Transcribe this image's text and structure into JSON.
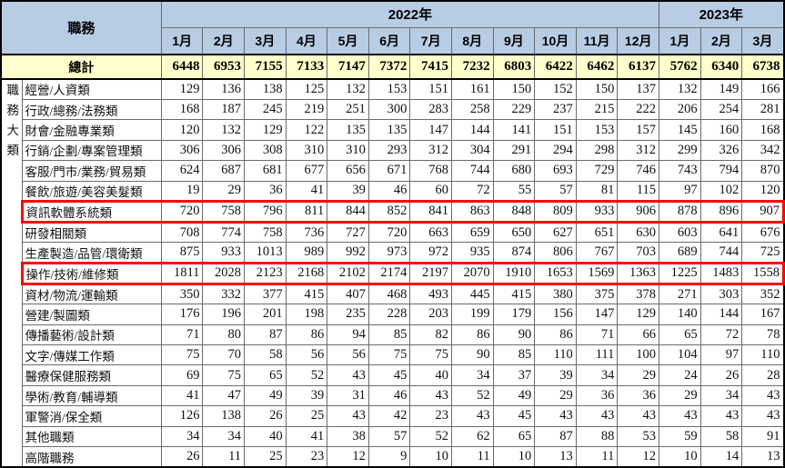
{
  "header": {
    "corner_label": "職務",
    "year_groups": [
      {
        "label": "2022年",
        "span": 12
      },
      {
        "label": "2023年",
        "span": 3
      }
    ],
    "months": [
      "1月",
      "2月",
      "3月",
      "4月",
      "5月",
      "6月",
      "7月",
      "8月",
      "9月",
      "10月",
      "11月",
      "12月",
      "1月",
      "2月",
      "3月"
    ]
  },
  "side_label": "職務大類",
  "total": {
    "label": "總計",
    "values": [
      6448,
      6953,
      7155,
      7133,
      7147,
      7372,
      7415,
      7232,
      6803,
      6422,
      6462,
      6137,
      5762,
      6340,
      6738
    ]
  },
  "rows": [
    {
      "category": "經營/人資類",
      "highlighted": false,
      "values": [
        129,
        136,
        138,
        125,
        132,
        153,
        151,
        161,
        150,
        152,
        150,
        137,
        132,
        149,
        166
      ]
    },
    {
      "category": "行政/總務/法務類",
      "highlighted": false,
      "values": [
        168,
        187,
        245,
        219,
        251,
        300,
        283,
        258,
        229,
        237,
        215,
        222,
        206,
        254,
        281
      ]
    },
    {
      "category": "財會/金融專業類",
      "highlighted": false,
      "values": [
        120,
        132,
        129,
        122,
        135,
        135,
        147,
        144,
        141,
        151,
        153,
        157,
        145,
        160,
        168
      ]
    },
    {
      "category": "行銷/企劃/專案管理類",
      "highlighted": false,
      "values": [
        306,
        306,
        308,
        310,
        310,
        293,
        312,
        304,
        291,
        294,
        298,
        312,
        299,
        326,
        342
      ]
    },
    {
      "category": "客服/門市/業務/貿易類",
      "highlighted": false,
      "values": [
        624,
        687,
        681,
        677,
        656,
        671,
        768,
        744,
        680,
        693,
        729,
        746,
        743,
        794,
        870
      ]
    },
    {
      "category": "餐飲/旅遊/美容美髮類",
      "highlighted": false,
      "values": [
        19,
        29,
        36,
        41,
        39,
        46,
        60,
        72,
        55,
        57,
        81,
        115,
        97,
        102,
        120
      ]
    },
    {
      "category": "資訊軟體系統類",
      "highlighted": true,
      "values": [
        720,
        758,
        796,
        811,
        844,
        852,
        841,
        863,
        848,
        809,
        933,
        906,
        878,
        896,
        907
      ]
    },
    {
      "category": "研發相關類",
      "highlighted": false,
      "values": [
        708,
        774,
        758,
        736,
        727,
        720,
        663,
        659,
        650,
        627,
        651,
        630,
        603,
        641,
        676
      ]
    },
    {
      "category": "生產製造/品管/環衛類",
      "highlighted": false,
      "values": [
        875,
        933,
        1013,
        989,
        992,
        973,
        972,
        935,
        874,
        806,
        767,
        703,
        689,
        744,
        725
      ]
    },
    {
      "category": "操作/技術/維修類",
      "highlighted": true,
      "values": [
        1811,
        2028,
        2123,
        2168,
        2102,
        2174,
        2197,
        2070,
        1910,
        1653,
        1569,
        1363,
        1225,
        1483,
        1558
      ]
    },
    {
      "category": "資材/物流/運輸類",
      "highlighted": false,
      "values": [
        350,
        332,
        377,
        415,
        407,
        468,
        493,
        445,
        415,
        380,
        375,
        378,
        271,
        303,
        352
      ]
    },
    {
      "category": "營建/製圖類",
      "highlighted": false,
      "values": [
        176,
        196,
        201,
        198,
        235,
        228,
        203,
        199,
        179,
        156,
        147,
        129,
        140,
        144,
        167
      ]
    },
    {
      "category": "傳播藝術/設計類",
      "highlighted": false,
      "values": [
        71,
        80,
        87,
        86,
        94,
        85,
        82,
        86,
        90,
        86,
        71,
        66,
        65,
        72,
        78
      ]
    },
    {
      "category": "文字/傳媒工作類",
      "highlighted": false,
      "values": [
        75,
        70,
        58,
        56,
        56,
        75,
        75,
        90,
        85,
        110,
        111,
        100,
        104,
        97,
        110
      ]
    },
    {
      "category": "醫療保健服務類",
      "highlighted": false,
      "values": [
        69,
        75,
        65,
        52,
        43,
        45,
        40,
        34,
        37,
        39,
        34,
        29,
        24,
        26,
        28
      ]
    },
    {
      "category": "學術/教育/輔導類",
      "highlighted": false,
      "values": [
        41,
        47,
        49,
        39,
        31,
        46,
        43,
        52,
        49,
        29,
        36,
        36,
        29,
        34,
        43
      ]
    },
    {
      "category": "軍警消/保全類",
      "highlighted": false,
      "values": [
        126,
        138,
        26,
        25,
        43,
        42,
        23,
        43,
        45,
        43,
        43,
        43,
        43,
        43,
        43
      ]
    },
    {
      "category": "其他職類",
      "highlighted": false,
      "values": [
        34,
        34,
        40,
        41,
        38,
        57,
        52,
        62,
        65,
        87,
        88,
        53,
        59,
        58,
        91
      ]
    },
    {
      "category": "高階職務",
      "highlighted": false,
      "values": [
        26,
        11,
        25,
        23,
        12,
        9,
        10,
        11,
        10,
        13,
        11,
        12,
        10,
        14,
        13
      ]
    }
  ],
  "colors": {
    "header_bg": "#b8cce4",
    "total_bg": "#ffffcc",
    "highlight_border": "#ff0000"
  }
}
